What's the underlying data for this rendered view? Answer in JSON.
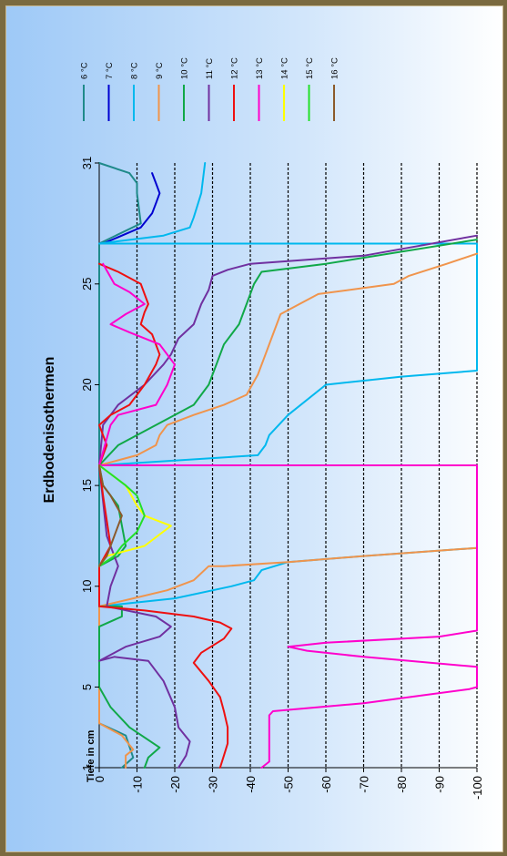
{
  "chart_data": {
    "type": "line",
    "title": "Erdbodenisothermen",
    "ylabel": "Tiefe in cm",
    "xlabel": "",
    "y_ticks": [
      "1",
      "5",
      "10",
      "15",
      "20",
      "25",
      "31"
    ],
    "depth_ticks": [
      "0",
      "-10",
      "-20",
      "-30",
      "-40",
      "-50",
      "-60",
      "-70",
      "-80",
      "-90",
      "-100"
    ],
    "xlim": [
      0,
      -100
    ],
    "ylim": [
      1,
      31
    ],
    "grid": "dashed lines every 10 cm",
    "legend_position": "top-right",
    "series": [
      {
        "name": "6 °C",
        "color": "#1f8a8a",
        "points": [
          [
            -6,
            1
          ],
          [
            -9,
            1.5
          ],
          [
            -7,
            2.6
          ],
          [
            0,
            3.2
          ],
          [
            0,
            27
          ],
          [
            -11,
            28
          ],
          [
            -10,
            29.5
          ],
          [
            -10,
            30
          ],
          [
            -8,
            30.5
          ],
          [
            0,
            31
          ]
        ]
      },
      {
        "name": "7 °C",
        "color": "#0000d0",
        "points": [
          [
            -14,
            30.5
          ],
          [
            -15,
            30
          ],
          [
            -16,
            29.5
          ],
          [
            -15,
            29
          ],
          [
            -14,
            28.5
          ],
          [
            -11,
            27.8
          ],
          [
            -1,
            27
          ]
        ]
      },
      {
        "name": "8 °C",
        "color": "#00b8ee",
        "points": [
          [
            0,
            9
          ],
          [
            -20,
            9.4
          ],
          [
            -35,
            10
          ],
          [
            -41,
            10.3
          ],
          [
            -43,
            10.8
          ],
          [
            -50,
            11.2
          ],
          [
            -70,
            11.5
          ],
          [
            -100,
            11.9
          ],
          [
            -100,
            16
          ],
          [
            0,
            16
          ],
          [
            -42,
            16.5
          ],
          [
            -44,
            17
          ],
          [
            -45,
            17.5
          ],
          [
            -50,
            18.5
          ],
          [
            -60,
            20
          ],
          [
            -80,
            20.4
          ],
          [
            -100,
            20.7
          ],
          [
            -100,
            27
          ],
          [
            0,
            27
          ],
          [
            -17,
            27.4
          ],
          [
            -24,
            27.8
          ],
          [
            -25,
            28.3
          ],
          [
            -27,
            29.5
          ],
          [
            -28,
            31
          ]
        ]
      },
      {
        "name": "9 °C",
        "color": "#f0944c",
        "points": [
          [
            -7,
            1
          ],
          [
            -7,
            1.6
          ],
          [
            -9,
            1.9
          ],
          [
            -6,
            2.6
          ],
          [
            0,
            3.2
          ],
          [
            0,
            9
          ],
          [
            -9,
            9.4
          ],
          [
            -18,
            9.8
          ],
          [
            -25,
            10.3
          ],
          [
            -29,
            11
          ],
          [
            -33,
            11
          ],
          [
            -50,
            11.2
          ],
          [
            -70,
            11.5
          ],
          [
            -100,
            11.9
          ],
          [
            -100,
            16
          ],
          [
            0,
            16
          ],
          [
            -10,
            16.5
          ],
          [
            -15,
            17
          ],
          [
            -16,
            17.5
          ],
          [
            -18,
            18
          ],
          [
            -25,
            18.5
          ],
          [
            -33,
            19
          ],
          [
            -39,
            19.5
          ],
          [
            -42,
            20.5
          ],
          [
            -44,
            21.5
          ],
          [
            -46,
            22.5
          ],
          [
            -48,
            23.5
          ],
          [
            -53,
            24
          ],
          [
            -58,
            24.5
          ],
          [
            -78,
            25
          ],
          [
            -82,
            25.4
          ],
          [
            -92,
            26
          ],
          [
            -100,
            26.5
          ]
        ]
      },
      {
        "name": "10 °C",
        "color": "#10a848",
        "points": [
          [
            -12,
            1
          ],
          [
            -13,
            1.5
          ],
          [
            -16,
            2
          ],
          [
            -8,
            3
          ],
          [
            -3,
            4
          ],
          [
            0,
            5
          ],
          [
            0,
            8
          ],
          [
            -6,
            8.5
          ],
          [
            -6,
            9
          ],
          [
            0,
            9
          ],
          [
            0,
            11
          ],
          [
            -5,
            11.5
          ],
          [
            -7,
            12
          ],
          [
            -5,
            14
          ],
          [
            -1,
            15
          ],
          [
            0,
            16
          ],
          [
            -5,
            17
          ],
          [
            -15,
            18
          ],
          [
            -25,
            19
          ],
          [
            -29,
            20
          ],
          [
            -31,
            21
          ],
          [
            -33,
            22
          ],
          [
            -37,
            23
          ],
          [
            -39,
            24
          ],
          [
            -41,
            25
          ],
          [
            -43,
            25.6
          ],
          [
            -60,
            26
          ],
          [
            -100,
            27.2
          ]
        ]
      },
      {
        "name": "11 °C",
        "color": "#7030a0",
        "points": [
          [
            -21,
            1
          ],
          [
            -23,
            1.6
          ],
          [
            -24,
            2.3
          ],
          [
            -21,
            3
          ],
          [
            -20,
            4
          ],
          [
            -17,
            5.3
          ],
          [
            -13,
            6.3
          ],
          [
            -4,
            6.5
          ],
          [
            0,
            6.3
          ],
          [
            -7,
            7
          ],
          [
            -16,
            7.5
          ],
          [
            -19,
            8
          ],
          [
            -15,
            8.5
          ],
          [
            -2,
            9
          ],
          [
            -3,
            10
          ],
          [
            -5,
            11
          ],
          [
            -2,
            12.5
          ],
          [
            0,
            16
          ],
          [
            -1,
            18
          ],
          [
            -5,
            19
          ],
          [
            -12,
            20
          ],
          [
            -17,
            21
          ],
          [
            -19,
            21.5
          ],
          [
            -21,
            22.3
          ],
          [
            -25,
            23
          ],
          [
            -27,
            24
          ],
          [
            -29,
            24.7
          ],
          [
            -30,
            25.4
          ],
          [
            -34,
            25.7
          ],
          [
            -40,
            26
          ],
          [
            -70,
            26.4
          ],
          [
            -100,
            27.4
          ]
        ]
      },
      {
        "name": "12 °C",
        "color": "#ee1010",
        "points": [
          [
            -32,
            1
          ],
          [
            -33,
            1.6
          ],
          [
            -34,
            2.2
          ],
          [
            -34,
            3
          ],
          [
            -33,
            3.8
          ],
          [
            -32,
            4.5
          ],
          [
            -29,
            5.3
          ],
          [
            -25,
            6.2
          ],
          [
            -27,
            6.7
          ],
          [
            -33,
            7.4
          ],
          [
            -35,
            7.9
          ],
          [
            -32,
            8.2
          ],
          [
            -25,
            8.5
          ],
          [
            -12,
            8.8
          ],
          [
            0,
            9
          ],
          [
            0,
            11
          ],
          [
            -3,
            12
          ],
          [
            -1,
            14.5
          ],
          [
            0,
            16
          ],
          [
            -2,
            17
          ],
          [
            0,
            18
          ],
          [
            -3,
            18.5
          ],
          [
            -8,
            19
          ],
          [
            -12,
            20
          ],
          [
            -15,
            21
          ],
          [
            -16,
            21.5
          ],
          [
            -14,
            22.5
          ],
          [
            -11,
            23
          ],
          [
            -12,
            23.6
          ],
          [
            -13,
            24
          ],
          [
            -12,
            24.5
          ],
          [
            -11,
            25
          ],
          [
            -5,
            25.6
          ],
          [
            0,
            26
          ]
        ]
      },
      {
        "name": "13 °C",
        "color": "#ff00cc",
        "points": [
          [
            -43,
            1
          ],
          [
            -45,
            1.3
          ],
          [
            -45,
            3.6
          ],
          [
            -46,
            3.8
          ],
          [
            -70,
            4.2
          ],
          [
            -98,
            4.9
          ],
          [
            -100,
            5
          ],
          [
            -100,
            6
          ],
          [
            -70,
            6.5
          ],
          [
            -55,
            6.8
          ],
          [
            -50,
            7
          ],
          [
            -60,
            7.2
          ],
          [
            -90,
            7.5
          ],
          [
            -100,
            7.8
          ],
          [
            -100,
            16
          ],
          [
            0,
            16
          ],
          [
            -3,
            18
          ],
          [
            -5,
            18.5
          ],
          [
            -15,
            19
          ],
          [
            -18,
            20
          ],
          [
            -20,
            21
          ],
          [
            -16,
            22
          ],
          [
            -8,
            22.6
          ],
          [
            -3,
            23
          ],
          [
            -7,
            23.5
          ],
          [
            -12,
            24
          ],
          [
            -8,
            24.6
          ],
          [
            -4,
            25
          ],
          [
            -1,
            26
          ]
        ]
      },
      {
        "name": "14 °C",
        "color": "#ffff00",
        "points": [
          [
            0,
            11
          ],
          [
            -2,
            11.5
          ],
          [
            -12,
            12
          ],
          [
            -19,
            13
          ],
          [
            -12,
            13.5
          ],
          [
            -10,
            14
          ],
          [
            -7,
            15
          ],
          [
            0,
            16
          ]
        ]
      },
      {
        "name": "15 °C",
        "color": "#22e028",
        "points": [
          [
            0,
            11
          ],
          [
            -4,
            11.5
          ],
          [
            -6,
            12
          ],
          [
            -10,
            12.7
          ],
          [
            -12,
            13.5
          ],
          [
            -10,
            14.5
          ],
          [
            -7,
            15
          ],
          [
            0,
            16
          ]
        ]
      },
      {
        "name": "16 °C",
        "color": "#8b5a2b",
        "points": [
          [
            0,
            11
          ],
          [
            -2,
            11.5
          ],
          [
            -4,
            12.5
          ],
          [
            -6,
            13.5
          ],
          [
            -3,
            14.5
          ],
          [
            -1,
            15
          ],
          [
            0,
            16
          ]
        ]
      }
    ]
  }
}
